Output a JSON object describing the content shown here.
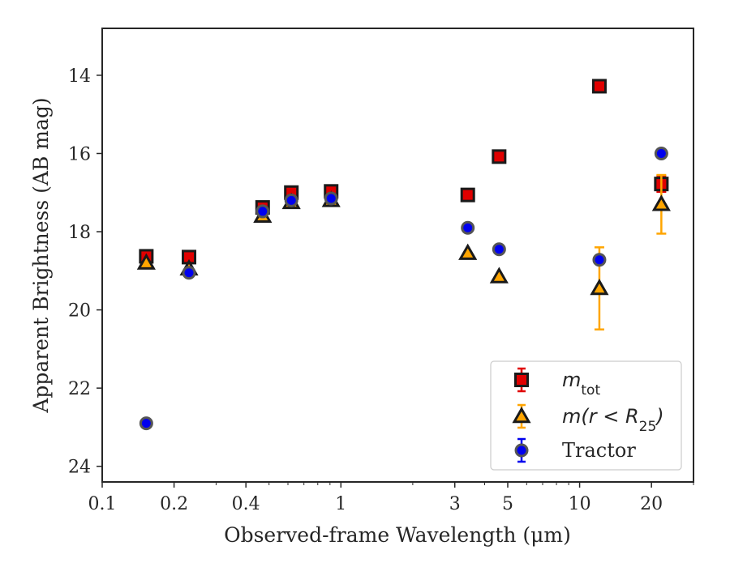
{
  "chart_data": {
    "type": "scatter",
    "xlabel": "Observed-frame Wavelength (μm)",
    "ylabel": "Apparent Brightness (AB mag)",
    "xscale": "log",
    "xlim": [
      0.1,
      30
    ],
    "ylim": [
      24.4,
      12.8
    ],
    "y_inverted": true,
    "grid": false,
    "legend_position": "lower-right",
    "x_ticks": [
      {
        "value": 0.1,
        "label": "0.1"
      },
      {
        "value": 0.2,
        "label": "0.2"
      },
      {
        "value": 0.4,
        "label": "0.4"
      },
      {
        "value": 1,
        "label": "1"
      },
      {
        "value": 3,
        "label": "3"
      },
      {
        "value": 5,
        "label": "5"
      },
      {
        "value": 10,
        "label": "10"
      },
      {
        "value": 20,
        "label": "20"
      }
    ],
    "y_ticks": [
      {
        "value": 14,
        "label": "14"
      },
      {
        "value": 16,
        "label": "16"
      },
      {
        "value": 18,
        "label": "18"
      },
      {
        "value": 20,
        "label": "20"
      },
      {
        "value": 22,
        "label": "22"
      },
      {
        "value": 24,
        "label": "24"
      }
    ],
    "series": [
      {
        "name": "m_tot",
        "legend_label": "m",
        "legend_sub": "tot",
        "marker": "square",
        "color": "#e00000",
        "err_color": "#e00000",
        "points": [
          {
            "x": 0.153,
            "y": 18.63,
            "err": 0
          },
          {
            "x": 0.231,
            "y": 18.65,
            "err": 0
          },
          {
            "x": 0.47,
            "y": 17.38,
            "err": 0
          },
          {
            "x": 0.62,
            "y": 17.0,
            "err": 0
          },
          {
            "x": 0.91,
            "y": 16.97,
            "err": 0
          },
          {
            "x": 3.4,
            "y": 17.06,
            "err": 0
          },
          {
            "x": 4.6,
            "y": 16.08,
            "err": 0
          },
          {
            "x": 12.1,
            "y": 14.28,
            "err": 0
          },
          {
            "x": 22.0,
            "y": 16.78,
            "err": 0.2
          }
        ]
      },
      {
        "name": "m(r < R25)",
        "legend_label": "m(r < R",
        "legend_sub": "25",
        "legend_suffix": ")",
        "marker": "triangle",
        "color": "#ffa500",
        "err_color": "#ffa500",
        "points": [
          {
            "x": 0.153,
            "y": 18.8,
            "err": 0
          },
          {
            "x": 0.231,
            "y": 18.95,
            "err": 0
          },
          {
            "x": 0.47,
            "y": 17.6,
            "err": 0
          },
          {
            "x": 0.62,
            "y": 17.25,
            "err": 0
          },
          {
            "x": 0.91,
            "y": 17.2,
            "err": 0
          },
          {
            "x": 3.4,
            "y": 18.55,
            "err": 0
          },
          {
            "x": 4.6,
            "y": 19.15,
            "err": 0
          },
          {
            "x": 12.1,
            "y": 19.45,
            "err": 1.05
          },
          {
            "x": 22.0,
            "y": 17.3,
            "err": 0.75
          }
        ]
      },
      {
        "name": "Tractor",
        "legend_label": "Tractor",
        "marker": "circle",
        "color": "#0000ee",
        "err_color": "#0000ee",
        "points": [
          {
            "x": 0.153,
            "y": 22.9,
            "err": 0
          },
          {
            "x": 0.231,
            "y": 19.05,
            "err": 0
          },
          {
            "x": 0.47,
            "y": 17.48,
            "err": 0
          },
          {
            "x": 0.62,
            "y": 17.2,
            "err": 0
          },
          {
            "x": 0.91,
            "y": 17.15,
            "err": 0
          },
          {
            "x": 3.4,
            "y": 17.9,
            "err": 0
          },
          {
            "x": 4.6,
            "y": 18.45,
            "err": 0
          },
          {
            "x": 12.1,
            "y": 18.72,
            "err": 0
          },
          {
            "x": 22.0,
            "y": 16.0,
            "err": 0
          }
        ]
      }
    ]
  }
}
